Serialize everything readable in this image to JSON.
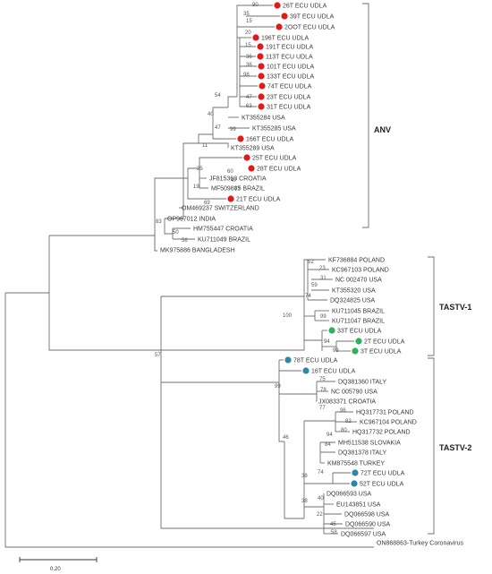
{
  "groups": {
    "anv": "ANV",
    "tastv1": "TASTV-1",
    "tastv2": "TASTV-2"
  },
  "scale_label": "0.20",
  "colors": {
    "red": "#e31a1c",
    "green": "#2bb35a",
    "blue": "#2e86ab"
  },
  "leaves": [
    {
      "label": "26T ECU UDLA",
      "mark": "red"
    },
    {
      "label": "39T ECU UDLA",
      "mark": "red"
    },
    {
      "label": "2OOT ECU UDLA",
      "mark": "red"
    },
    {
      "label": "196T ECU UDLA",
      "mark": "red"
    },
    {
      "label": "191T ECU UDLA",
      "mark": "red"
    },
    {
      "label": "113T ECU UDLA",
      "mark": "red"
    },
    {
      "label": "101T ECU UDLA",
      "mark": "red"
    },
    {
      "label": "133T ECU UDLA",
      "mark": "red"
    },
    {
      "label": "74T ECU UDLA",
      "mark": "red"
    },
    {
      "label": "23T ECU UDLA",
      "mark": "red"
    },
    {
      "label": "31T ECU UDLA",
      "mark": "red"
    },
    {
      "label": "KT355284 USA",
      "mark": ""
    },
    {
      "label": "KT355285 USA",
      "mark": ""
    },
    {
      "label": "166T ECU UDLA",
      "mark": "red"
    },
    {
      "label": "KT355289 USA",
      "mark": ""
    },
    {
      "label": "25T ECU UDLA",
      "mark": "red"
    },
    {
      "label": "28T ECU UDLA",
      "mark": "red"
    },
    {
      "label": "JF815368 CROATIA",
      "mark": ""
    },
    {
      "label": "MF509885 BRAZIL",
      "mark": ""
    },
    {
      "label": "21T ECU UDLA",
      "mark": "red"
    },
    {
      "label": "OM469237 SWITZERLAND",
      "mark": ""
    },
    {
      "label": "OP967012 INDIA",
      "mark": ""
    },
    {
      "label": "HM755447 CROATIA",
      "mark": ""
    },
    {
      "label": "KU711049 BRAZIL",
      "mark": ""
    },
    {
      "label": "MK975886 BANGLADESH",
      "mark": ""
    },
    {
      "label": "KF736884 POLAND",
      "mark": ""
    },
    {
      "label": "KC967103 POLAND",
      "mark": ""
    },
    {
      "label": "NC 002470 USA",
      "mark": ""
    },
    {
      "label": "KT355320 USA",
      "mark": ""
    },
    {
      "label": "DQ324825 USA",
      "mark": ""
    },
    {
      "label": "KU711045 BRAZIL",
      "mark": ""
    },
    {
      "label": "KU711047 BRAZIL",
      "mark": ""
    },
    {
      "label": "33T ECU UDLA",
      "mark": "green"
    },
    {
      "label": "2T ECU UDLA",
      "mark": "green"
    },
    {
      "label": "3T ECU UDLA",
      "mark": "green"
    },
    {
      "label": "78T ECU UDLA",
      "mark": "blue"
    },
    {
      "label": "16T ECU UDLA",
      "mark": "blue"
    },
    {
      "label": "DQ381360 ITALY",
      "mark": ""
    },
    {
      "label": "NC 005790 USA",
      "mark": ""
    },
    {
      "label": "JX083371 CROATIA",
      "mark": ""
    },
    {
      "label": "HQ317731 POLAND",
      "mark": ""
    },
    {
      "label": "KC967104 POLAND",
      "mark": ""
    },
    {
      "label": "HQ317732 POLAND",
      "mark": ""
    },
    {
      "label": "MH511538 SLOVAKIA",
      "mark": ""
    },
    {
      "label": "DQ381378 ITALY",
      "mark": ""
    },
    {
      "label": "KM875548 TURKEY",
      "mark": ""
    },
    {
      "label": "72T ECU UDLA",
      "mark": "blue"
    },
    {
      "label": "52T ECU UDLA",
      "mark": "blue"
    },
    {
      "label": "DQ066593 USA",
      "mark": ""
    },
    {
      "label": "EU143851 USA",
      "mark": ""
    },
    {
      "label": "DQ066598 USA",
      "mark": ""
    },
    {
      "label": "DQ066590 USA",
      "mark": ""
    },
    {
      "label": "DQ066597 USA",
      "mark": ""
    },
    {
      "label": "ON868863-Turkey Coronavirus",
      "mark": ""
    }
  ],
  "bootstrap": [
    {
      "text": "90"
    },
    {
      "text": "35"
    },
    {
      "text": "15"
    },
    {
      "text": "20"
    },
    {
      "text": "15"
    },
    {
      "text": "36"
    },
    {
      "text": "36"
    },
    {
      "text": "98"
    },
    {
      "text": "47"
    },
    {
      "text": "63"
    },
    {
      "text": "54"
    },
    {
      "text": "40"
    },
    {
      "text": "47"
    },
    {
      "text": "99"
    },
    {
      "text": "11"
    },
    {
      "text": "60"
    },
    {
      "text": "47"
    },
    {
      "text": "77"
    },
    {
      "text": "25"
    },
    {
      "text": "19"
    },
    {
      "text": "69"
    },
    {
      "text": "83"
    },
    {
      "text": "50"
    },
    {
      "text": "56"
    },
    {
      "text": "52"
    },
    {
      "text": "23"
    },
    {
      "text": "31"
    },
    {
      "text": "59"
    },
    {
      "text": "74"
    },
    {
      "text": "99"
    },
    {
      "text": "100"
    },
    {
      "text": "94"
    },
    {
      "text": "98"
    },
    {
      "text": "57"
    },
    {
      "text": "99"
    },
    {
      "text": "75"
    },
    {
      "text": "78"
    },
    {
      "text": "77"
    },
    {
      "text": "96"
    },
    {
      "text": "82"
    },
    {
      "text": "80"
    },
    {
      "text": "94"
    },
    {
      "text": "84"
    },
    {
      "text": "46"
    },
    {
      "text": "74"
    },
    {
      "text": "38"
    },
    {
      "text": "38"
    },
    {
      "text": "40"
    },
    {
      "text": "22"
    },
    {
      "text": "45"
    },
    {
      "text": "58"
    }
  ]
}
